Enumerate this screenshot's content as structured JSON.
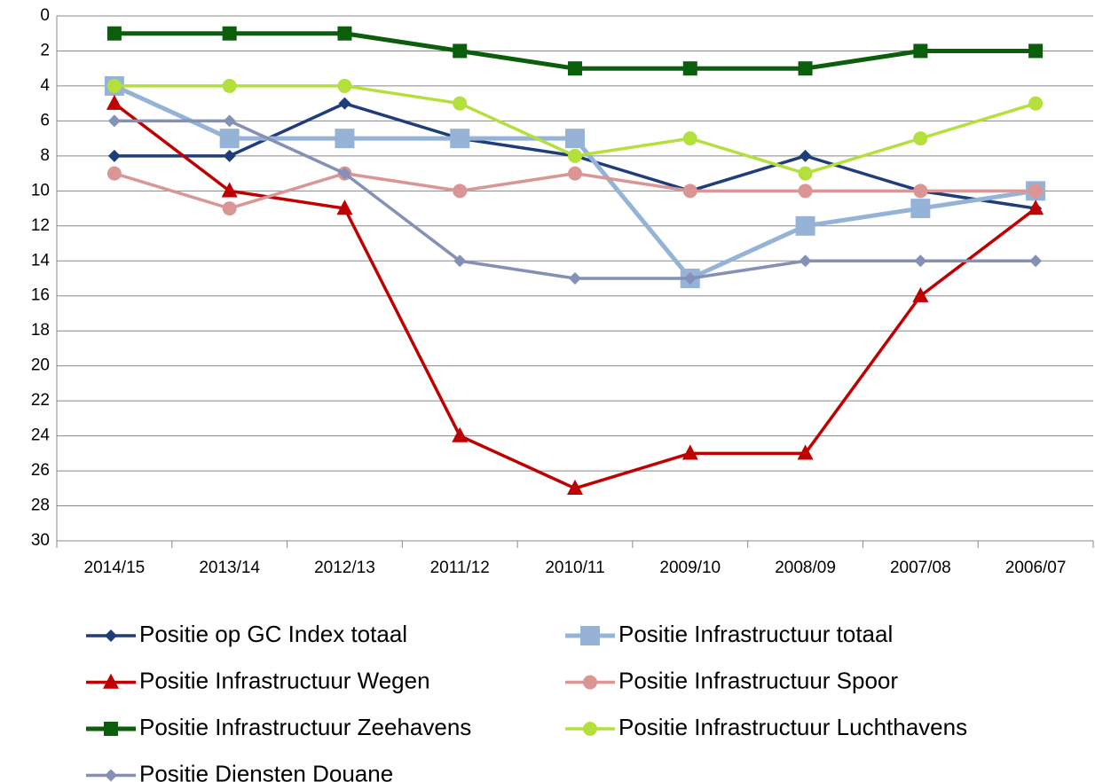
{
  "chart_data": {
    "type": "line",
    "categories": [
      "2014/15",
      "2013/14",
      "2012/13",
      "2011/12",
      "2010/11",
      "2009/10",
      "2008/09",
      "2007/08",
      "2006/07"
    ],
    "ylim": [
      0,
      30
    ],
    "yticks": [
      0,
      2,
      4,
      6,
      8,
      10,
      12,
      14,
      16,
      18,
      20,
      22,
      24,
      26,
      28,
      30
    ],
    "y_inverted": true,
    "grid": true,
    "legend": "bottom",
    "series": [
      {
        "name": "Positie op GC Index totaal",
        "color": "#1f3d7a",
        "marker": "diamond",
        "values": [
          8,
          8,
          5,
          7,
          8,
          10,
          8,
          10,
          11
        ]
      },
      {
        "name": "Positie Infrastructuur totaal",
        "color": "#95b3d7",
        "marker": "square",
        "values": [
          4,
          7,
          7,
          7,
          7,
          15,
          12,
          11,
          10
        ]
      },
      {
        "name": "Positie Infrastructuur Wegen",
        "color": "#c00000",
        "marker": "triangle",
        "values": [
          5,
          10,
          11,
          24,
          27,
          25,
          25,
          16,
          11
        ]
      },
      {
        "name": "Positie Infrastructuur Spoor",
        "color": "#d99694",
        "marker": "circle",
        "values": [
          9,
          11,
          9,
          10,
          9,
          10,
          10,
          10,
          10
        ]
      },
      {
        "name": "Positie Infrastructuur Zeehavens",
        "color": "#0b5e0b",
        "marker": "square",
        "values": [
          1,
          1,
          1,
          2,
          3,
          3,
          3,
          2,
          2
        ]
      },
      {
        "name": "Positie Infrastructuur Luchthavens",
        "color": "#b3e03c",
        "marker": "circle",
        "values": [
          4,
          4,
          4,
          5,
          8,
          7,
          9,
          7,
          5
        ]
      },
      {
        "name": "Positie Diensten Douane",
        "color": "#8490b5",
        "marker": "diamond",
        "values": [
          6,
          6,
          9,
          14,
          15,
          15,
          14,
          14,
          14
        ]
      }
    ]
  }
}
